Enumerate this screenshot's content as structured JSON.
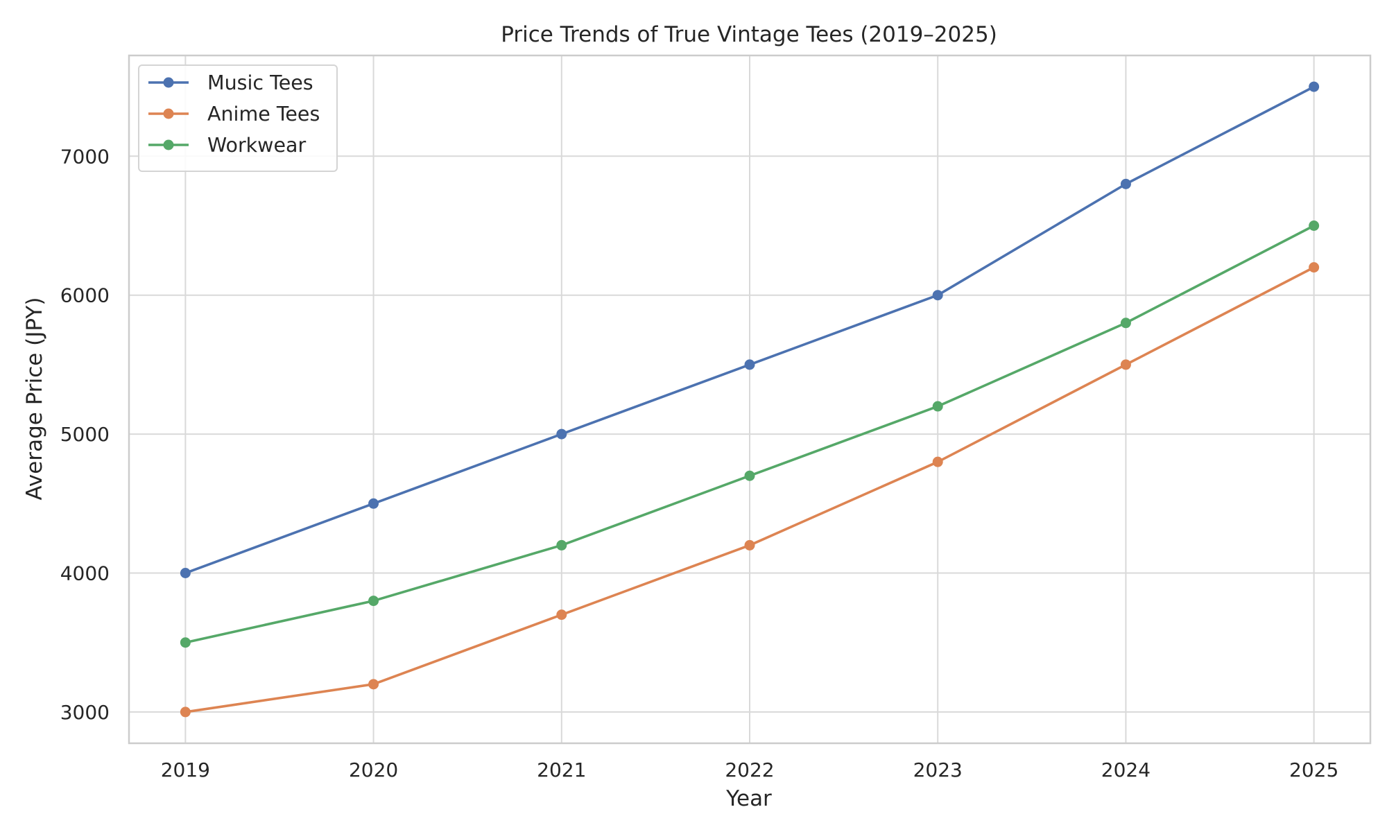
{
  "chart_data": {
    "type": "line",
    "title": "Price Trends of True Vintage Tees (2019–2025)",
    "xlabel": "Year",
    "ylabel": "Average Price (JPY)",
    "x": [
      2019,
      2020,
      2021,
      2022,
      2023,
      2024,
      2025
    ],
    "x_tick_labels": [
      "2019",
      "2020",
      "2021",
      "2022",
      "2023",
      "2024",
      "2025"
    ],
    "y_ticks": [
      3000,
      4000,
      5000,
      6000,
      7000
    ],
    "y_tick_labels": [
      "3000",
      "4000",
      "5000",
      "6000",
      "7000"
    ],
    "xlim": [
      2018.7,
      2025.3
    ],
    "ylim": [
      2775,
      7725
    ],
    "grid": true,
    "legend": "top-left",
    "series": [
      {
        "name": "Music Tees",
        "color": "#4c72b0",
        "marker": "circle",
        "values": [
          4000,
          4500,
          5000,
          5500,
          6000,
          6800,
          7500
        ]
      },
      {
        "name": "Anime Tees",
        "color": "#dd8452",
        "marker": "circle",
        "values": [
          3000,
          3200,
          3700,
          4200,
          4800,
          5500,
          6200
        ]
      },
      {
        "name": "Workwear",
        "color": "#55a868",
        "marker": "circle",
        "values": [
          3500,
          3800,
          4200,
          4700,
          5200,
          5800,
          6500
        ]
      }
    ]
  }
}
